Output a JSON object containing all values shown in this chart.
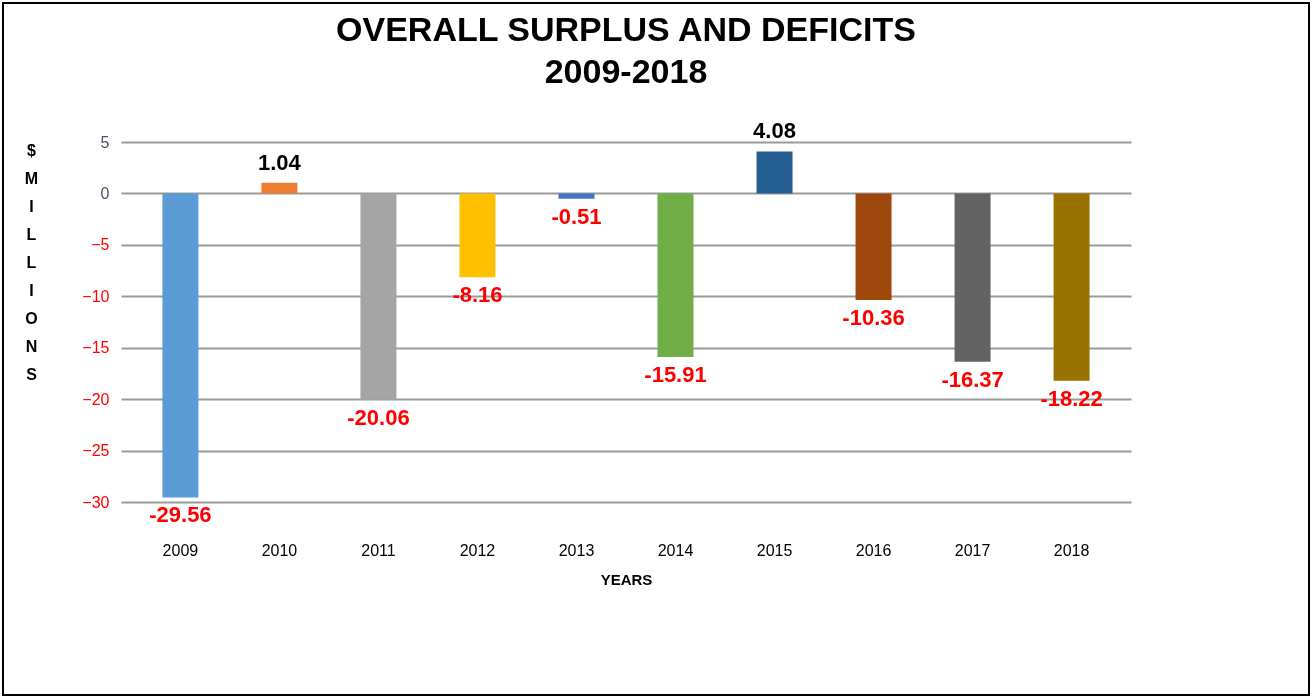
{
  "chart_data": {
    "type": "bar",
    "title": "OVERALL SURPLUS AND DEFICITS",
    "subtitle": "2009-2018",
    "xlabel": "YEARS",
    "ylabel": "$ MILLIONS",
    "categories": [
      "2009",
      "2010",
      "2011",
      "2012",
      "2013",
      "2014",
      "2015",
      "2016",
      "2017",
      "2018"
    ],
    "values": [
      -29.56,
      1.04,
      -20.06,
      -8.16,
      -0.51,
      -15.91,
      4.08,
      -10.36,
      -16.37,
      -18.22
    ],
    "colors": [
      "#5b9bd5",
      "#ed7d31",
      "#a5a5a5",
      "#ffc000",
      "#4472c4",
      "#70ad47",
      "#255e91",
      "#9e480e",
      "#636363",
      "#997300"
    ],
    "ylim": [
      -30,
      5
    ],
    "yticks": [
      -30,
      -25,
      -20,
      -15,
      -10,
      -5,
      0,
      5
    ],
    "grid": "y",
    "data_labels": true
  }
}
